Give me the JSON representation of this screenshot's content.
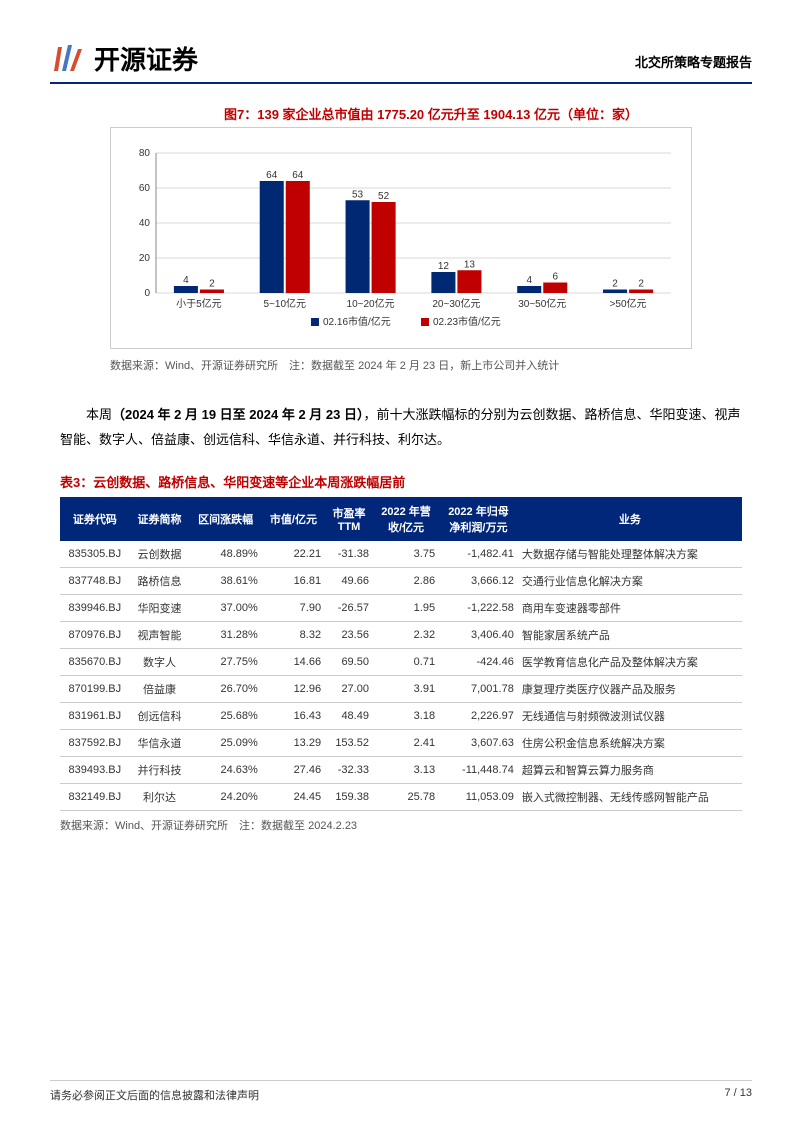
{
  "header": {
    "logo_text": "开源证券",
    "right_text": "北交所策略专题报告"
  },
  "chart": {
    "caption": "图7：139 家企业总市值由 1775.20 亿元升至 1904.13 亿元（单位：家）",
    "type": "bar",
    "categories": [
      "小于5亿元",
      "5~10亿元",
      "10~20亿元",
      "20~30亿元",
      "30~50亿元",
      ">50亿元"
    ],
    "series": [
      {
        "name": "02.16市值/亿元",
        "color": "#002873",
        "values": [
          4,
          64,
          53,
          12,
          4,
          2
        ]
      },
      {
        "name": "02.23市值/亿元",
        "color": "#c00000",
        "values": [
          2,
          64,
          52,
          13,
          6,
          2
        ]
      }
    ],
    "ylim": [
      0,
      80
    ],
    "yticks": [
      0,
      20,
      40,
      60,
      80
    ],
    "grid_color": "#d9d9d9",
    "background_color": "#ffffff",
    "bar_value_color": "#333333",
    "axis_color": "#888888",
    "source": "数据来源：Wind、开源证券研究所　注：数据截至 2024 年 2 月 23 日，新上市公司并入统计"
  },
  "body": {
    "prefix": "本周",
    "bold": "（2024 年 2 月 19 日至 2024 年 2 月 23 日）",
    "suffix": "，前十大涨跌幅标的分别为云创数据、路桥信息、华阳变速、视声智能、数字人、倍益康、创远信科、华信永道、并行科技、利尔达。"
  },
  "table": {
    "caption": "表3：云创数据、路桥信息、华阳变速等企业本周涨跌幅居前",
    "header_bg": "#00277a",
    "header_color": "#ffffff",
    "columns": [
      "证券代码",
      "证券简称",
      "区间涨跌幅",
      "市值/亿元",
      "市盈率\nTTM",
      "2022 年营\n收/亿元",
      "2022 年归母\n净利润/万元",
      "业务"
    ],
    "rows": [
      [
        "835305.BJ",
        "云创数据",
        "48.89%",
        "22.21",
        "-31.38",
        "3.75",
        "-1,482.41",
        "大数据存储与智能处理整体解决方案"
      ],
      [
        "837748.BJ",
        "路桥信息",
        "38.61%",
        "16.81",
        "49.66",
        "2.86",
        "3,666.12",
        "交通行业信息化解决方案"
      ],
      [
        "839946.BJ",
        "华阳变速",
        "37.00%",
        "7.90",
        "-26.57",
        "1.95",
        "-1,222.58",
        "商用车变速器零部件"
      ],
      [
        "870976.BJ",
        "视声智能",
        "31.28%",
        "8.32",
        "23.56",
        "2.32",
        "3,406.40",
        "智能家居系统产品"
      ],
      [
        "835670.BJ",
        "数字人",
        "27.75%",
        "14.66",
        "69.50",
        "0.71",
        "-424.46",
        "医学教育信息化产品及整体解决方案"
      ],
      [
        "870199.BJ",
        "倍益康",
        "26.70%",
        "12.96",
        "27.00",
        "3.91",
        "7,001.78",
        "康复理疗类医疗仪器产品及服务"
      ],
      [
        "831961.BJ",
        "创远信科",
        "25.68%",
        "16.43",
        "48.49",
        "3.18",
        "2,226.97",
        "无线通信与射频微波测试仪器"
      ],
      [
        "837592.BJ",
        "华信永道",
        "25.09%",
        "13.29",
        "153.52",
        "2.41",
        "3,607.63",
        "住房公积金信息系统解决方案"
      ],
      [
        "839493.BJ",
        "并行科技",
        "24.63%",
        "27.46",
        "-32.33",
        "3.13",
        "-11,448.74",
        "超算云和智算云算力服务商"
      ],
      [
        "832149.BJ",
        "利尔达",
        "24.20%",
        "24.45",
        "159.38",
        "25.78",
        "11,053.09",
        "嵌入式微控制器、无线传感网智能产品"
      ]
    ],
    "source": "数据来源：Wind、开源证券研究所　注：数据截至 2024.2.23"
  },
  "footer": {
    "left": "请务必参阅正文后面的信息披露和法律声明",
    "right": "7 / 13"
  }
}
